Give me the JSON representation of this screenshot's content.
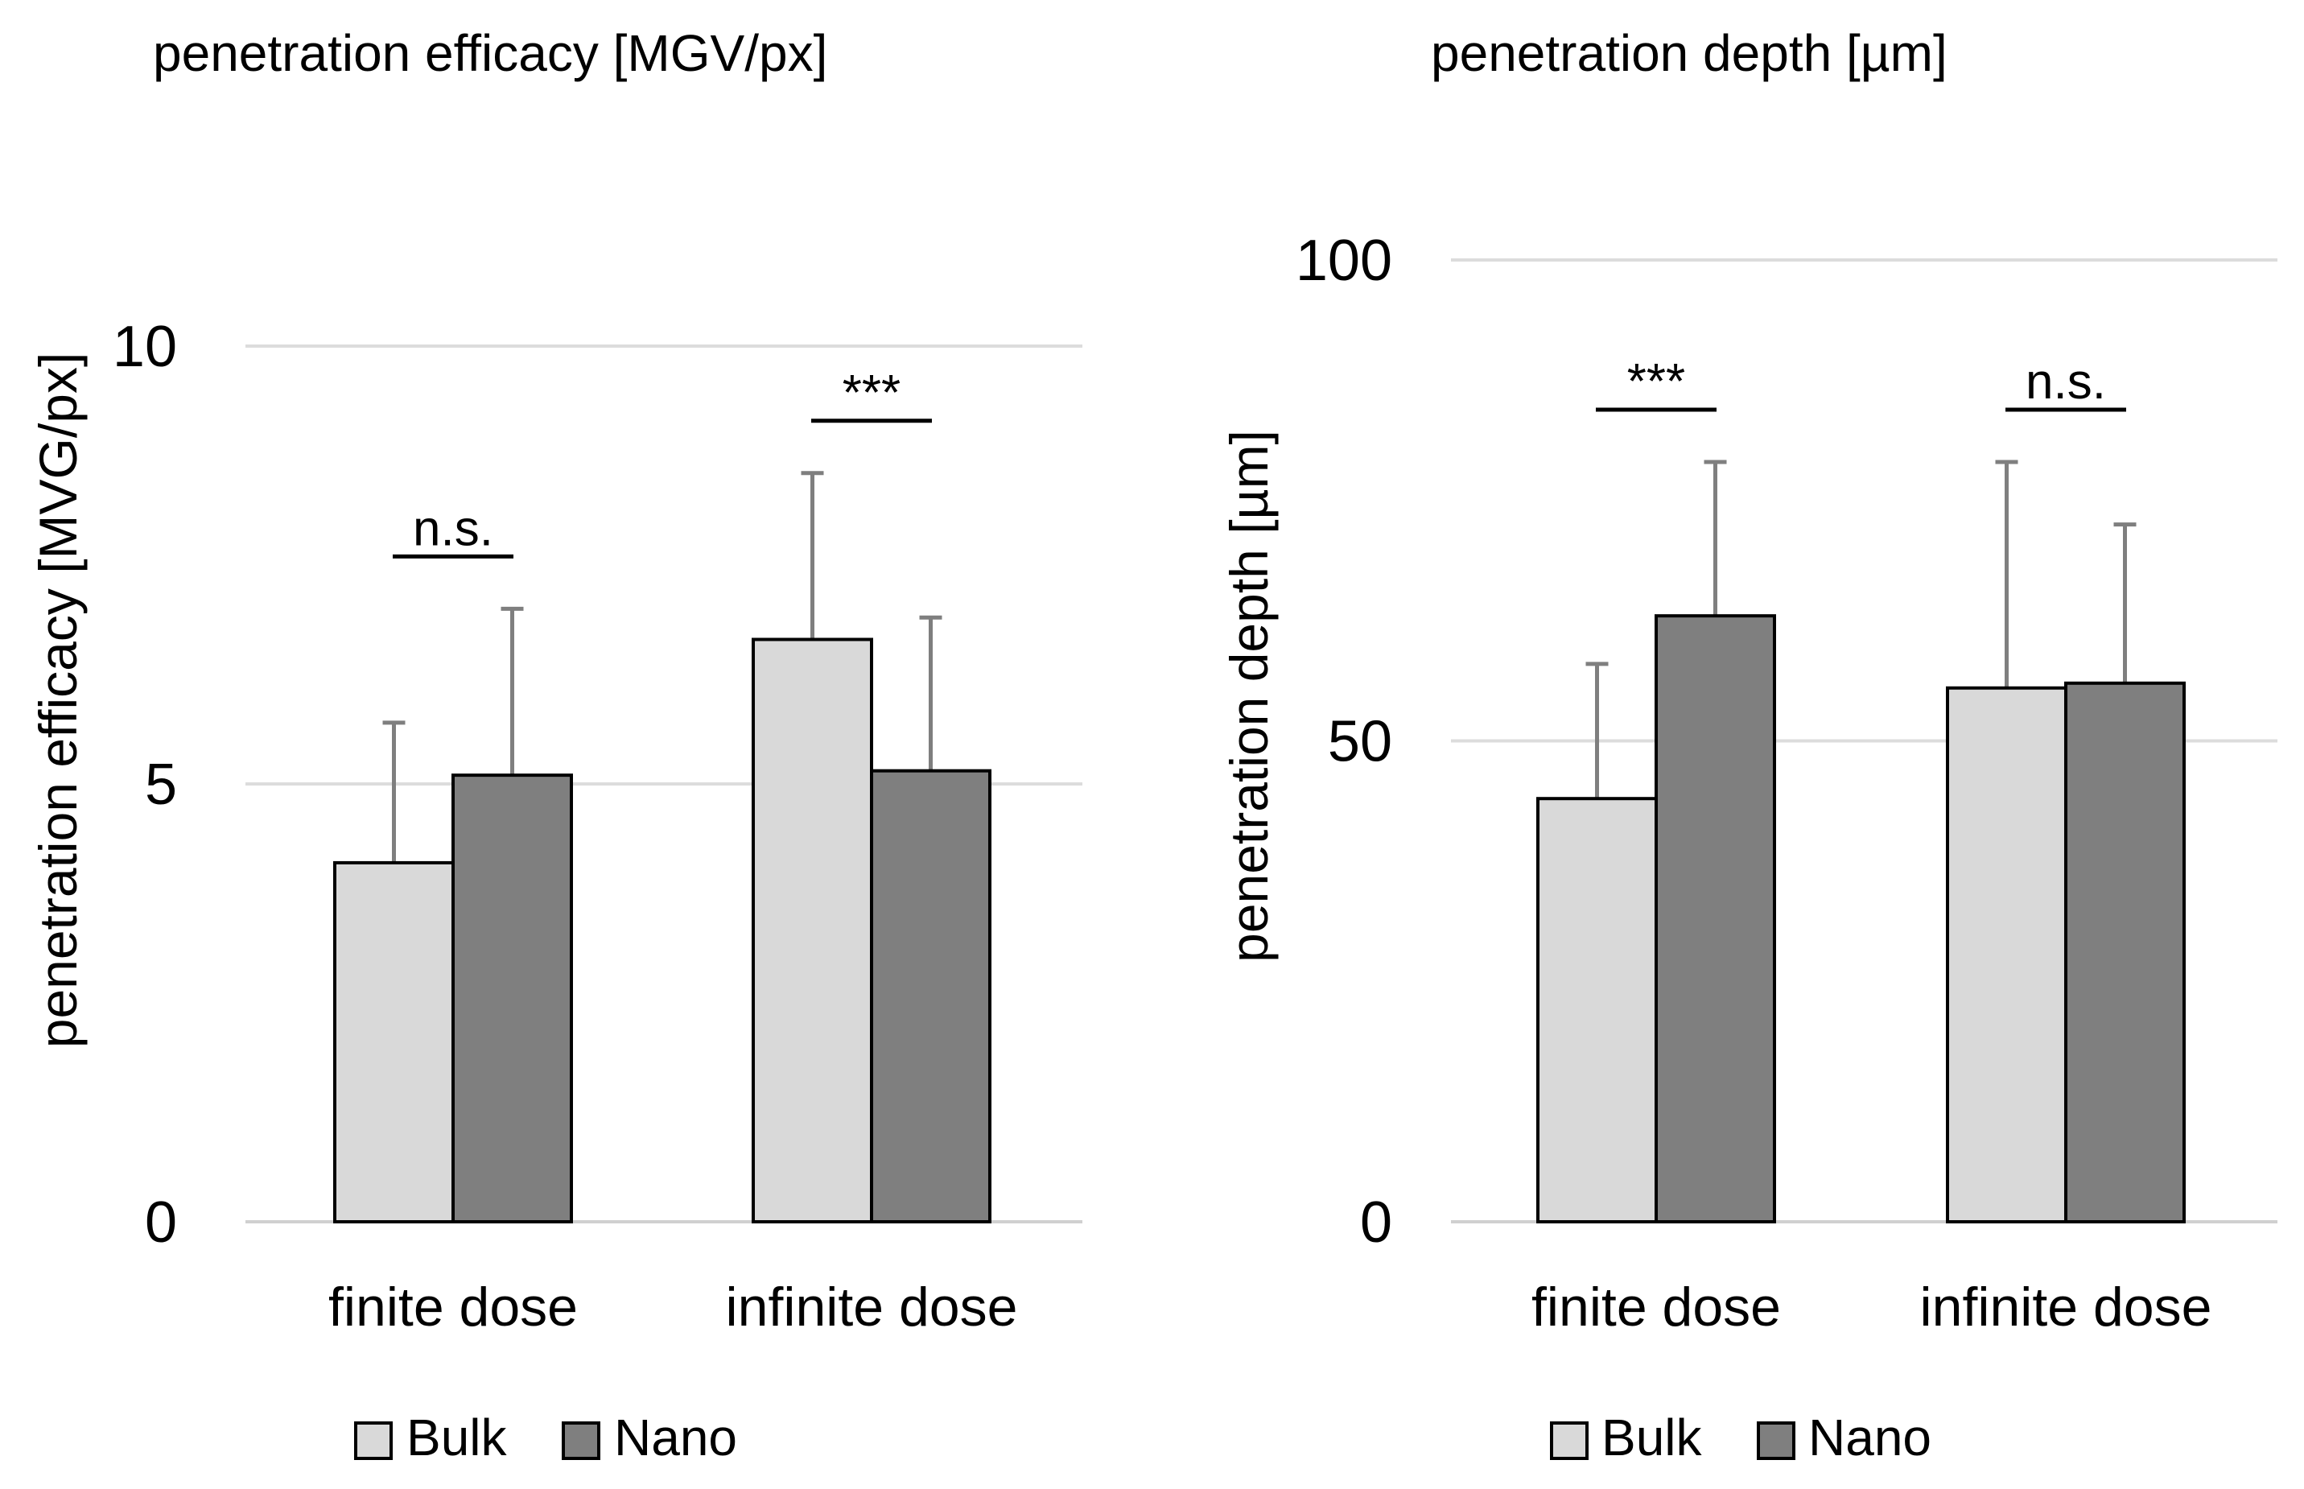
{
  "chart_data": [
    {
      "type": "bar",
      "title": "penetration efficacy [MGV/px]",
      "ylabel": "penetration efficacy [MVG/px]",
      "xlabel": "",
      "ylim": [
        0,
        10
      ],
      "yticks": [
        "0",
        "5",
        "10"
      ],
      "ytick_values": [
        0,
        5,
        10
      ],
      "grid": true,
      "legend_position": "bottom-left",
      "categories": [
        "finite dose",
        "infinite dose"
      ],
      "series": [
        {
          "name": "Bulk",
          "color": "#d9d9d9",
          "values": [
            4.1,
            6.65
          ],
          "errors": [
            1.6,
            1.9
          ]
        },
        {
          "name": "Nano",
          "color": "#7f7f7f",
          "values": [
            5.1,
            5.15
          ],
          "errors": [
            1.9,
            1.75
          ]
        }
      ],
      "annotations": [
        {
          "category": "finite dose",
          "text": "n.s."
        },
        {
          "category": "infinite dose",
          "text": "***"
        }
      ]
    },
    {
      "type": "bar",
      "title": "penetration depth [µm]",
      "ylabel": "penetration depth [µm]",
      "xlabel": "",
      "ylim": [
        0,
        100
      ],
      "yticks": [
        "0",
        "50",
        "100"
      ],
      "ytick_values": [
        0,
        50,
        100
      ],
      "grid": true,
      "legend_position": "bottom-left",
      "categories": [
        "finite dose",
        "infinite dose"
      ],
      "series": [
        {
          "name": "Bulk",
          "color": "#d9d9d9",
          "values": [
            44,
            55.5
          ],
          "errors": [
            14,
            23.5
          ]
        },
        {
          "name": "Nano",
          "color": "#7f7f7f",
          "values": [
            63,
            56
          ],
          "errors": [
            16,
            16.5
          ]
        }
      ],
      "annotations": [
        {
          "category": "finite dose",
          "text": "***"
        },
        {
          "category": "infinite dose",
          "text": "n.s."
        }
      ]
    }
  ]
}
